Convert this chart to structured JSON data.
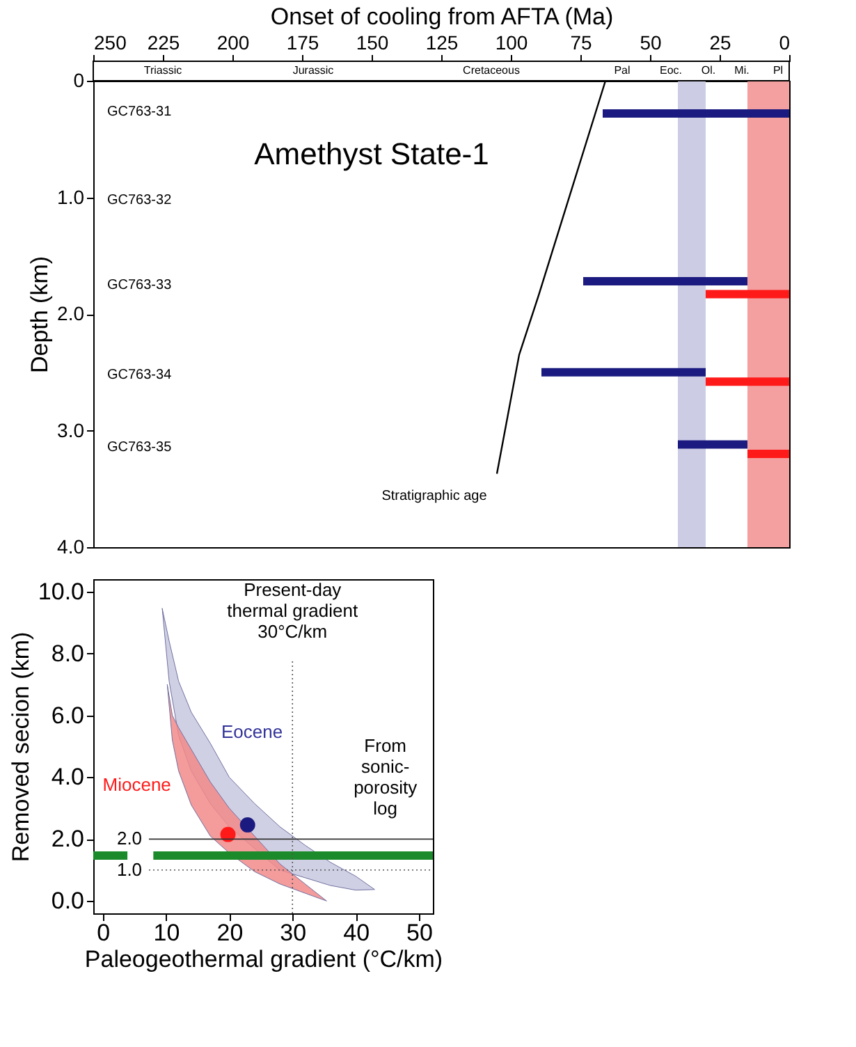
{
  "chart_data": [
    {
      "type": "line",
      "title": "Amethyst State-1",
      "xlabel": "Onset of cooling from AFTA (Ma)",
      "ylabel": "Depth (km)",
      "xlim": [
        250,
        0
      ],
      "xticks": [
        250,
        225,
        200,
        175,
        150,
        125,
        100,
        75,
        50,
        25,
        0
      ],
      "ylim": [
        4.0,
        0
      ],
      "yticks": [
        0,
        {
          "value": 1,
          "label": "1.0"
        },
        {
          "value": 2,
          "label": "2.0"
        },
        {
          "value": 3,
          "label": "3.0"
        },
        {
          "value": 4,
          "label": "4.0"
        }
      ],
      "grid": false,
      "line_style": "solid",
      "bands": [
        {
          "axis": "x",
          "from": 40,
          "to": 30,
          "color": "#ccccE4"
        },
        {
          "axis": "x",
          "from": 15,
          "to": 0,
          "color": "#f4a0a0"
        }
      ],
      "series": [
        {
          "color": "#000000",
          "x": [
            66,
            90,
            97,
            105
          ],
          "values": [
            0,
            1.84,
            2.35,
            3.37
          ]
        },
        {
          "color": "#1a1a80",
          "x": [
            67,
            0
          ],
          "values": [
            0.28,
            0.28
          ]
        },
        {
          "color": "#1a1a80",
          "x": [
            74,
            15
          ],
          "values": [
            1.72,
            1.72
          ]
        },
        {
          "color": "#ff1a1a",
          "x": [
            30,
            0
          ],
          "values": [
            1.83,
            1.83
          ]
        },
        {
          "color": "#1a1a80",
          "x": [
            89,
            30
          ],
          "values": [
            2.5,
            2.5
          ]
        },
        {
          "color": "#ff1a1a",
          "x": [
            30,
            0
          ],
          "values": [
            2.58,
            2.58
          ]
        },
        {
          "color": "#1a1a80",
          "x": [
            40,
            15
          ],
          "values": [
            3.12,
            3.12
          ]
        },
        {
          "color": "#ff1a1a",
          "x": [
            15,
            0
          ],
          "values": [
            3.2,
            3.2
          ]
        }
      ],
      "annotations": [
        "GC763-31",
        "GC763-32",
        "GC763-33",
        "GC763-34",
        "GC763-35",
        "Stratigraphic age",
        "Triassic",
        "Jurassic",
        "Cretaceous",
        "Pal",
        "Eoc.",
        "Ol.",
        "Mi.",
        "Pl"
      ]
    },
    {
      "type": "area",
      "xlabel": "Paleogeothermal gradient (°C/km)",
      "ylabel": "Removed secion (km)",
      "xlim": [
        -1.5,
        52.2
      ],
      "xticks": [
        0,
        10,
        20,
        30,
        40,
        50
      ],
      "ylim": [
        -0.4,
        10.4
      ],
      "yticks": [
        {
          "value": 0,
          "label": "0.0"
        },
        {
          "value": 2,
          "label": "2.0"
        },
        {
          "value": 4,
          "label": "4.0"
        },
        {
          "value": 6,
          "label": "6.0"
        },
        {
          "value": 8,
          "label": "8.0"
        },
        {
          "value": 10,
          "label": "10.0"
        }
      ],
      "grid": false,
      "ref_lines": [
        {
          "axis": "x",
          "value": 30,
          "label": "Present-day\nthermal gradient\n30°C/km",
          "line_style": "dotted",
          "color": "#555555"
        },
        {
          "axis": "y",
          "value": 2.0,
          "label": "2.0",
          "line_style": "solid",
          "color": "#333333"
        },
        {
          "axis": "y",
          "value": 1.0,
          "label": "1.0",
          "line_style": "dotted",
          "color": "#555555"
        }
      ],
      "series": [
        {
          "name": "Eocene",
          "color": "#c8c8e0",
          "x": [
            9.4,
            10.5,
            12,
            14,
            17,
            20,
            24,
            28,
            32,
            36,
            40,
            43,
            40,
            36,
            32,
            28,
            24,
            20,
            17,
            14,
            12,
            10.5
          ],
          "values": [
            9.46,
            8.4,
            7.1,
            6.1,
            5.1,
            4.0,
            3.15,
            2.4,
            1.8,
            1.25,
            0.8,
            0.37,
            0.35,
            0.5,
            0.75,
            1.0,
            1.7,
            2.4,
            3.15,
            4.2,
            5.35,
            7.1
          ]
        },
        {
          "name": "Miocene",
          "color": "#f28a8a",
          "x": [
            10.2,
            11,
            12,
            14,
            17,
            20,
            24,
            28,
            32,
            35.4,
            32,
            28,
            24,
            20,
            17,
            14,
            12,
            11
          ],
          "values": [
            7.0,
            6.0,
            5.6,
            4.9,
            3.85,
            3.0,
            2.1,
            1.2,
            0.55,
            0,
            0.25,
            0.55,
            0.95,
            1.55,
            2.1,
            3.1,
            4.2,
            5.2
          ]
        },
        {
          "type": "line",
          "color": "#1a8a2a",
          "x": [
            -1.5,
            3.9,
            6,
            8,
            52.2
          ],
          "values": [
            1.47,
            1.47,
            null,
            1.47,
            1.47
          ]
        },
        {
          "type": "scatter",
          "color": "#ff1a1a",
          "x": [
            19.8
          ],
          "values": [
            2.15
          ]
        },
        {
          "type": "scatter",
          "color": "#1a1a80",
          "x": [
            22.9
          ],
          "values": [
            2.46
          ]
        }
      ],
      "annotations": [
        "From\nsonic-\nporosity\nlog"
      ]
    }
  ]
}
